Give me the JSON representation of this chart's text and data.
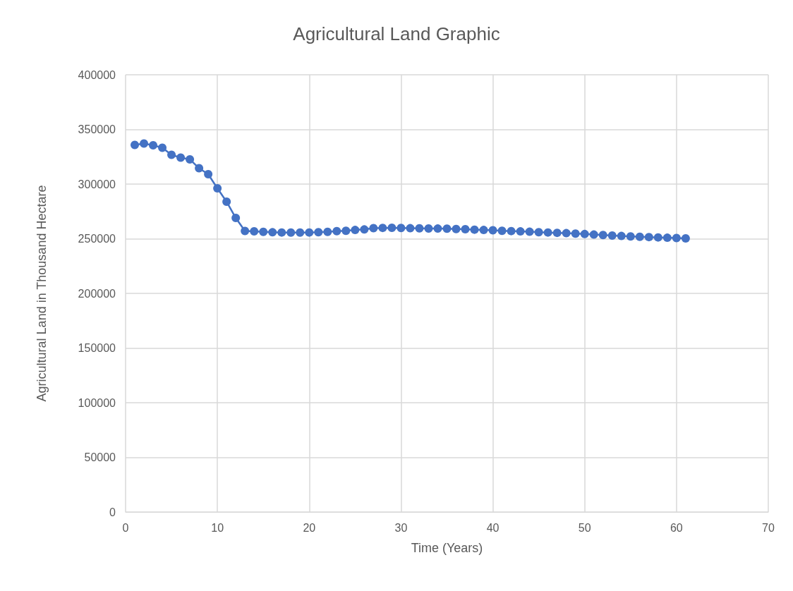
{
  "chart_data": {
    "type": "line",
    "title": "Agricultural Land Graphic",
    "xlabel": "Time (Years)",
    "ylabel": "Agricultural Land in Thousand Hectare",
    "x": [
      1,
      2,
      3,
      4,
      5,
      6,
      7,
      8,
      9,
      10,
      11,
      12,
      13,
      14,
      15,
      16,
      17,
      18,
      19,
      20,
      21,
      22,
      23,
      24,
      25,
      26,
      27,
      28,
      29,
      30,
      31,
      32,
      33,
      34,
      35,
      36,
      37,
      38,
      39,
      40,
      41,
      42,
      43,
      44,
      45,
      46,
      47,
      48,
      49,
      50,
      51,
      52,
      53,
      54,
      55,
      56,
      57,
      58,
      59,
      60,
      61
    ],
    "series": [
      {
        "color": "#4472c4",
        "values": [
          335800,
          337100,
          335500,
          333200,
          326800,
          324200,
          322600,
          314500,
          309000,
          296100,
          283900,
          269000,
          257100,
          256800,
          256300,
          255900,
          255700,
          255600,
          255600,
          255700,
          256000,
          256300,
          256900,
          257300,
          258000,
          258500,
          259700,
          259900,
          260000,
          259800,
          259600,
          259500,
          259400,
          259300,
          259200,
          258900,
          258700,
          258300,
          258000,
          257700,
          257300,
          257000,
          256700,
          256400,
          256000,
          255700,
          255400,
          255100,
          254700,
          254300,
          253800,
          253400,
          252900,
          252500,
          252100,
          251800,
          251500,
          251200,
          250900,
          250600,
          250300
        ]
      }
    ],
    "xlim": [
      0,
      70
    ],
    "xticks": [
      0,
      10,
      20,
      30,
      40,
      50,
      60,
      70
    ],
    "ylim": [
      0,
      400000
    ],
    "yticks": [
      0,
      50000,
      100000,
      150000,
      200000,
      250000,
      300000,
      350000,
      400000
    ],
    "grid": true,
    "marker": "circle",
    "line_style": "solid"
  }
}
